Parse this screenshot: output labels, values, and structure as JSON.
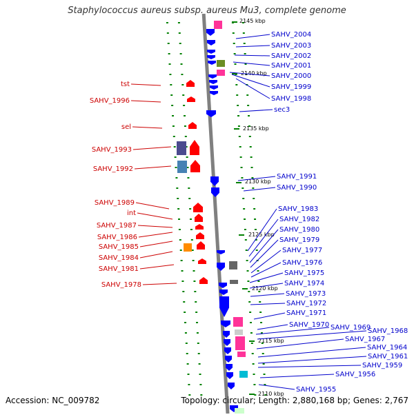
{
  "title": "Staphylococcus aureus subsp. aureus Mu3, complete genome",
  "footer": {
    "accession": "Accession: NC_009782",
    "summary": "Topology: circular; Length: 2,880,168 bp; Genes: 2,767"
  },
  "colors": {
    "backbone": "#808080",
    "forward_gene": "#ff0000",
    "reverse_gene": "#0000ff",
    "tick": "#008000",
    "label_right": "#0000cc",
    "label_left": "#cc0000",
    "magenta": "#ff3399",
    "olive": "#6b8e23",
    "gray": "#666666",
    "orange": "#ff8c00",
    "navy": "#4b4b8f",
    "steel": "#4682b4",
    "cyan": "#00bcd4"
  },
  "position_ticks": [
    "2145 kbp",
    "2140 kbp",
    "2135 kbp",
    "2130 kbp",
    "2125 kbp",
    "2120 kbp",
    "2115 kbp",
    "2110 kbp"
  ],
  "right_labels": [
    "SAHV_2004",
    "SAHV_2003",
    "SAHV_2002",
    "SAHV_2001",
    "SAHV_2000",
    "SAHV_1999",
    "SAHV_1998",
    "sec3",
    "SAHV_1991",
    "SAHV_1990",
    "SAHV_1983",
    "SAHV_1982",
    "SAHV_1980",
    "SAHV_1979",
    "SAHV_1977",
    "SAHV_1976",
    "SAHV_1975",
    "SAHV_1974",
    "SAHV_1973",
    "SAHV_1972",
    "SAHV_1971",
    "SAHV_1970",
    "SAHV_1969",
    "SAHV_1968",
    "SAHV_1967",
    "SAHV_1964",
    "SAHV_1961",
    "SAHV_1959",
    "SAHV_1956",
    "SAHV_1955"
  ],
  "left_labels": [
    "tst",
    "SAHV_1996",
    "sel",
    "SAHV_1993",
    "SAHV_1992",
    "SAHV_1989",
    "int",
    "SAHV_1987",
    "SAHV_1986",
    "SAHV_1985",
    "SAHV_1984",
    "SAHV_1981",
    "SAHV_1978"
  ]
}
